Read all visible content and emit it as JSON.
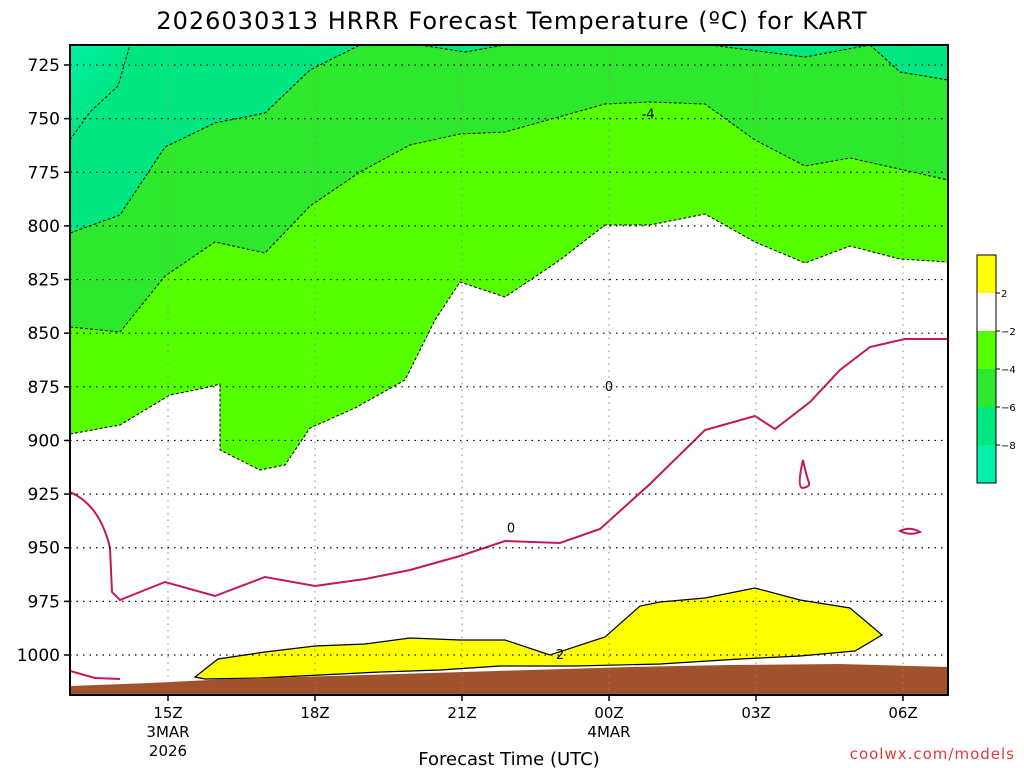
{
  "chart_data": {
    "type": "contour",
    "title": "2026030313 HRRR Forecast Temperature (ºC) for KART",
    "xlabel": "Forecast Time (UTC)",
    "credit": "coolwx.com/models",
    "y_ticks": [
      "725",
      "750",
      "775",
      "800",
      "825",
      "850",
      "875",
      "900",
      "925",
      "950",
      "975",
      "1000"
    ],
    "y_values_hPa": [
      725,
      750,
      775,
      800,
      825,
      850,
      875,
      900,
      925,
      950,
      975,
      1000
    ],
    "ylim_hPa": [
      715,
      1010
    ],
    "y_axis": "pressure (hPa), increasing downward",
    "x_ticks": [
      {
        "label": "15Z",
        "sub1": "3MAR",
        "sub2": "2026"
      },
      {
        "label": "18Z",
        "sub1": "",
        "sub2": ""
      },
      {
        "label": "21Z",
        "sub1": "",
        "sub2": ""
      },
      {
        "label": "00Z",
        "sub1": "4MAR",
        "sub2": ""
      },
      {
        "label": "03Z",
        "sub1": "",
        "sub2": ""
      },
      {
        "label": "06Z",
        "sub1": "",
        "sub2": ""
      }
    ],
    "x_range_hours_from_15Z": [
      -2,
      16
    ],
    "grid": true,
    "colorbar": {
      "position": "right",
      "labels": [
        "2",
        "−2",
        "−4",
        "−6",
        "−8"
      ],
      "bins": [
        {
          "range": "≥2",
          "color": "#ffff00"
        },
        {
          "range": "-2 to 2",
          "color": "#ffffff"
        },
        {
          "range": "-4 to -2",
          "color": "#55ff00"
        },
        {
          "range": "-6 to -4",
          "color": "#2ee82e"
        },
        {
          "range": "-8 to -6",
          "color": "#00e680"
        },
        {
          "range": "<-8",
          "color": "#00f0a8"
        }
      ]
    },
    "contour_labels": [
      {
        "text": "-4",
        "x_hours": 0.8,
        "p_hPa": 748
      },
      {
        "text": "0",
        "x_hours": 0.0,
        "p_hPa": 875
      },
      {
        "text": "0",
        "x_hours": -2.0,
        "p_hPa": 941
      },
      {
        "text": "2",
        "x_hours": -1.0,
        "p_hPa": 1000
      }
    ],
    "colors": {
      "warm": "#ffff00",
      "neutral": "#ffffff",
      "cold1": "#55ff00",
      "cold2": "#2ee82e",
      "cold3": "#00e680",
      "cold4": "#00f0a8",
      "freezing_line": "#c2185b",
      "ground": "#a0522d"
    }
  }
}
